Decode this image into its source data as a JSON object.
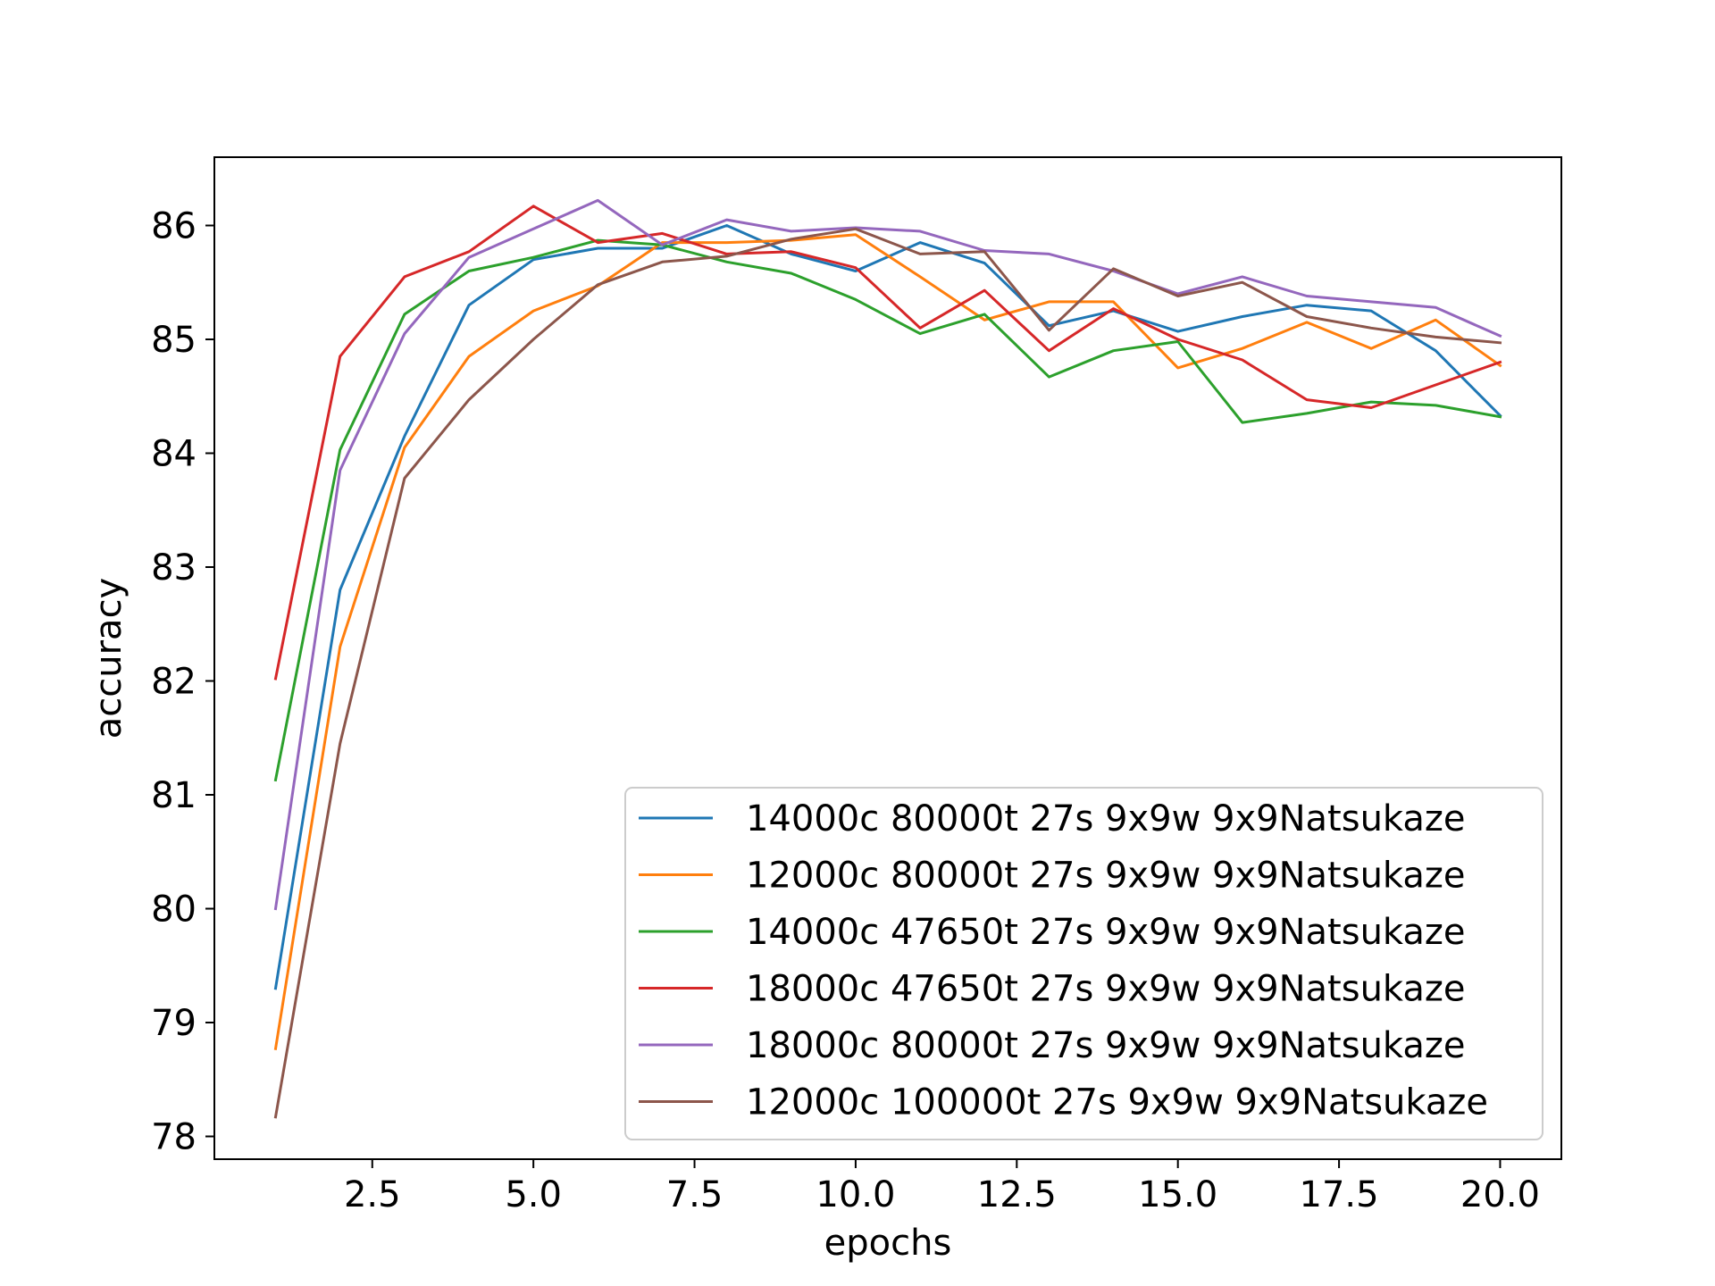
{
  "chart_data": {
    "type": "line",
    "xlabel": "epochs",
    "ylabel": "accuracy",
    "xlim": [
      0.05,
      20.95
    ],
    "ylim": [
      77.8,
      86.6
    ],
    "xticks": [
      2.5,
      5.0,
      7.5,
      10.0,
      12.5,
      15.0,
      17.5,
      20.0
    ],
    "xtick_labels": [
      "2.5",
      "5.0",
      "7.5",
      "10.0",
      "12.5",
      "15.0",
      "17.5",
      "20.0"
    ],
    "yticks": [
      78,
      79,
      80,
      81,
      82,
      83,
      84,
      85,
      86
    ],
    "ytick_labels": [
      "78",
      "79",
      "80",
      "81",
      "82",
      "83",
      "84",
      "85",
      "86"
    ],
    "grid": false,
    "legend_position": "lower-right",
    "x": [
      1,
      2,
      3,
      4,
      5,
      6,
      7,
      8,
      9,
      10,
      11,
      12,
      13,
      14,
      15,
      16,
      17,
      18,
      19,
      20
    ],
    "series": [
      {
        "name": "14000c 80000t 27s 9x9w 9x9Natsukaze",
        "color": "#1f77b4",
        "values": [
          79.3,
          82.8,
          84.15,
          85.3,
          85.7,
          85.8,
          85.8,
          86.0,
          85.75,
          85.6,
          85.85,
          85.67,
          85.12,
          85.25,
          85.07,
          85.2,
          85.3,
          85.25,
          84.9,
          84.33
        ]
      },
      {
        "name": "12000c 80000t 27s 9x9w 9x9Natsukaze",
        "color": "#ff7f0e",
        "values": [
          78.77,
          82.3,
          84.05,
          84.85,
          85.25,
          85.47,
          85.85,
          85.85,
          85.87,
          85.92,
          85.55,
          85.17,
          85.33,
          85.33,
          84.75,
          84.92,
          85.15,
          84.92,
          85.17,
          84.77
        ]
      },
      {
        "name": "14000c 47650t 27s 9x9w 9x9Natsukaze",
        "color": "#2ca02c",
        "values": [
          81.13,
          84.03,
          85.22,
          85.6,
          85.72,
          85.87,
          85.83,
          85.68,
          85.58,
          85.35,
          85.05,
          85.22,
          84.67,
          84.9,
          84.98,
          84.27,
          84.35,
          84.45,
          84.42,
          84.32
        ]
      },
      {
        "name": "18000c 47650t 27s 9x9w 9x9Natsukaze",
        "color": "#d62728",
        "values": [
          82.02,
          84.85,
          85.55,
          85.77,
          86.17,
          85.85,
          85.93,
          85.75,
          85.77,
          85.63,
          85.1,
          85.43,
          84.9,
          85.27,
          85.0,
          84.82,
          84.47,
          84.4,
          84.6,
          84.8
        ]
      },
      {
        "name": "18000c 80000t 27s 9x9w 9x9Natsukaze",
        "color": "#9467bd",
        "values": [
          80.0,
          83.85,
          85.05,
          85.72,
          85.97,
          86.22,
          85.83,
          86.05,
          85.95,
          85.98,
          85.95,
          85.78,
          85.75,
          85.6,
          85.4,
          85.55,
          85.38,
          85.33,
          85.28,
          85.03
        ]
      },
      {
        "name": "12000c 100000t 27s 9x9w 9x9Natsukaze",
        "color": "#8c564b",
        "values": [
          78.17,
          81.45,
          83.78,
          84.47,
          85.0,
          85.48,
          85.68,
          85.73,
          85.88,
          85.97,
          85.75,
          85.77,
          85.08,
          85.62,
          85.38,
          85.5,
          85.2,
          85.1,
          85.02,
          84.97
        ]
      }
    ]
  }
}
